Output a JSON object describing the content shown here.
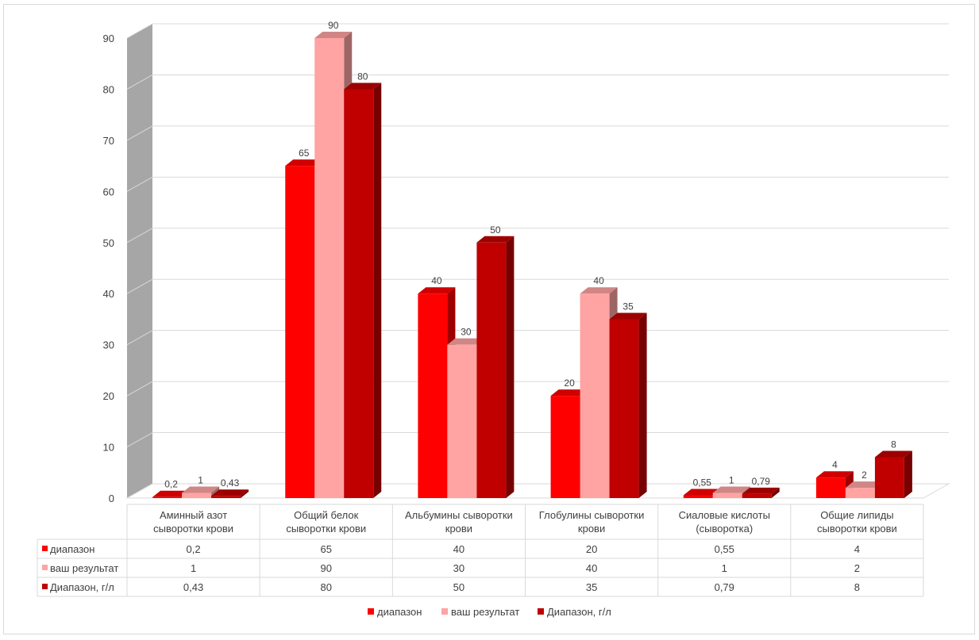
{
  "chart_data": {
    "type": "bar",
    "categories": [
      "Аминный азот сыворотки крови",
      "Общий белок сыворотки крови",
      "Альбумины сыворотки крови",
      "Глобулины сыворотки крови",
      "Сиаловые кислоты (сывороткa)",
      "Общие липиды сыворотки крови"
    ],
    "category_lines": [
      [
        "Аминный азот",
        "сыворотки крови"
      ],
      [
        "Общий белок",
        "сыворотки крови"
      ],
      [
        "Альбумины сыворотки",
        "крови"
      ],
      [
        "Глобулины сыворотки",
        "крови"
      ],
      [
        "Сиаловые кислоты",
        "(сыворотка)"
      ],
      [
        "Общие липиды",
        "сыворотки крови"
      ]
    ],
    "series": [
      {
        "name": "диапазон",
        "values": [
          0.2,
          65,
          40,
          20,
          0.55,
          4
        ],
        "labels": [
          "0,2",
          "65",
          "40",
          "20",
          "0,55",
          "4"
        ],
        "color": "#ff0000"
      },
      {
        "name": "ваш результат",
        "values": [
          1,
          90,
          30,
          40,
          1,
          2
        ],
        "labels": [
          "1",
          "90",
          "30",
          "40",
          "1",
          "2"
        ],
        "color": "#ffa3a3"
      },
      {
        "name": "Диапазон, г/л",
        "values": [
          0.43,
          80,
          50,
          35,
          0.79,
          8
        ],
        "labels": [
          "0,43",
          "80",
          "50",
          "35",
          "0,79",
          "8"
        ],
        "color": "#c00000"
      }
    ],
    "ylim": [
      0,
      90
    ],
    "yticks": [
      "0",
      "10",
      "20",
      "30",
      "40",
      "50",
      "60",
      "70",
      "80",
      "90"
    ],
    "grid": true,
    "legend": "bottom",
    "data_table": true,
    "three_d": true
  }
}
